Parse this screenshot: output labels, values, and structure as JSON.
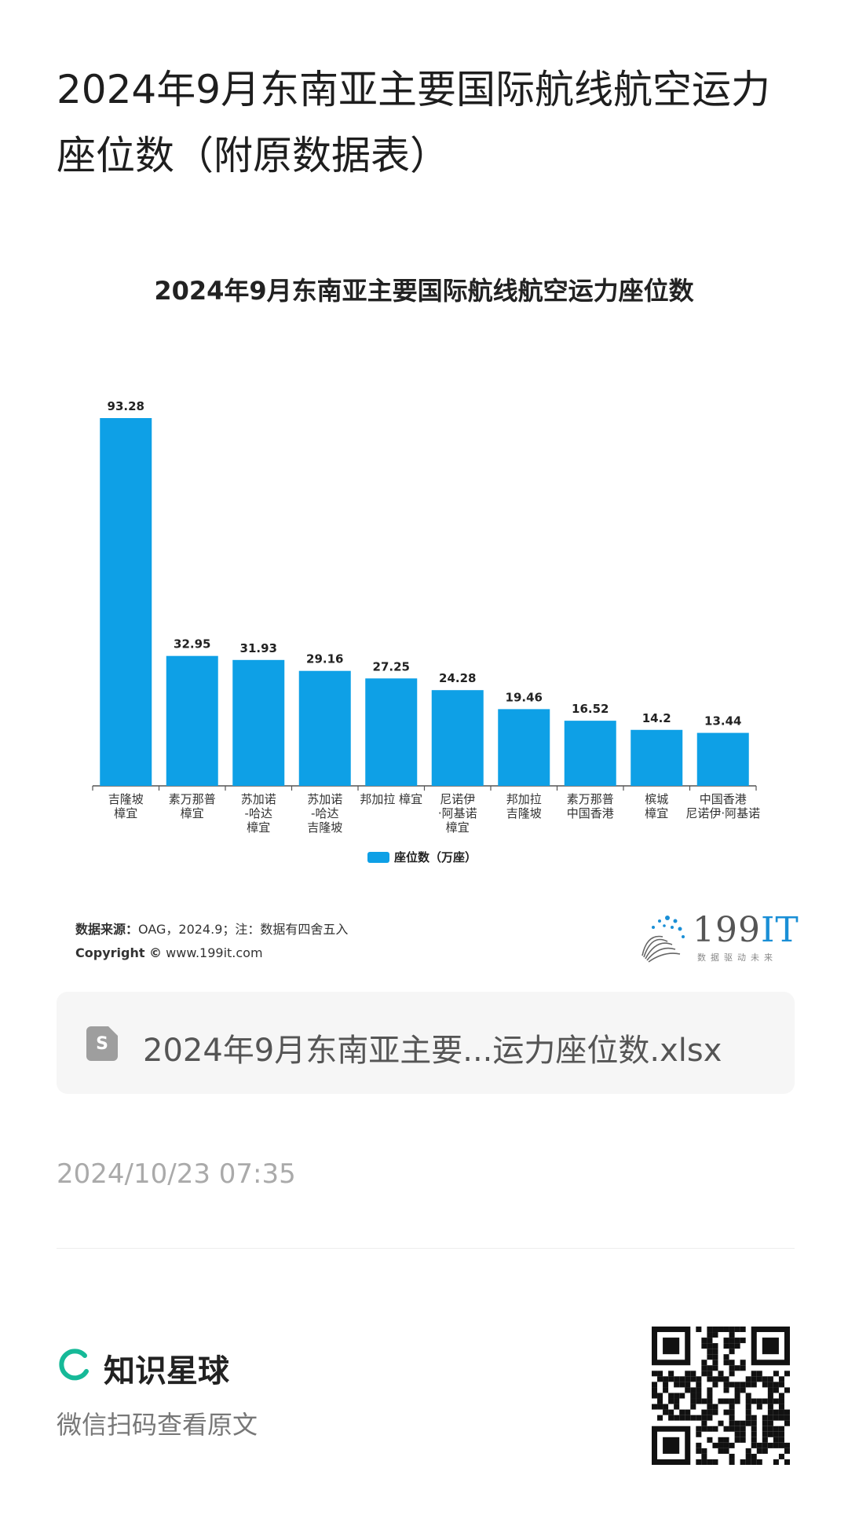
{
  "post": {
    "title": "2024年9月东南亚主要国际航线航空运力座位数（附原数据表）",
    "date": "2024/10/23 07:35"
  },
  "chart_data": {
    "type": "bar",
    "title": "2024年9月东南亚主要国际航线航空运力座位数",
    "categories": [
      [
        "吉隆坡",
        "樟宜"
      ],
      [
        "素万那普",
        "樟宜"
      ],
      [
        "苏加诺",
        "-哈达",
        "樟宜"
      ],
      [
        "苏加诺",
        "-哈达",
        "吉隆坡"
      ],
      [
        "邦加拉  樟宜"
      ],
      [
        "尼诺伊",
        "·阿基诺",
        "樟宜"
      ],
      [
        "邦加拉",
        "吉隆坡"
      ],
      [
        "素万那普",
        "中国香港"
      ],
      [
        "槟城",
        "樟宜"
      ],
      [
        "中国香港",
        "尼诺伊·阿基诺"
      ]
    ],
    "series": [
      {
        "name": "座位数（万座）",
        "values": [
          93.28,
          32.95,
          31.93,
          29.16,
          27.25,
          24.28,
          19.46,
          16.52,
          14.2,
          13.44
        ]
      }
    ],
    "value_labels": [
      "93.28",
      "32.95",
      "31.93",
      "29.16",
      "27.25",
      "24.28",
      "19.46",
      "16.52",
      "14.2",
      "13.44"
    ],
    "ylim": [
      0,
      93.28
    ],
    "grid": false,
    "legend_position": "bottom",
    "bar_color": "#0ea0e6"
  },
  "source": {
    "label": "数据来源：",
    "text": "OAG，2024.9；注：数据有四舍五入",
    "copyright_label": "Copyright ©",
    "copyright_url": "www.199it.com"
  },
  "logo": {
    "brand_num": "199",
    "brand_it": "IT",
    "tagline": "数据驱动未来"
  },
  "file": {
    "icon_letter": "S",
    "name": "2024年9月东南亚主要...运力座位数.xlsx"
  },
  "footer": {
    "app_name": "知识星球",
    "scan_text": "微信扫码查看原文",
    "brand_color": "#16b998"
  }
}
